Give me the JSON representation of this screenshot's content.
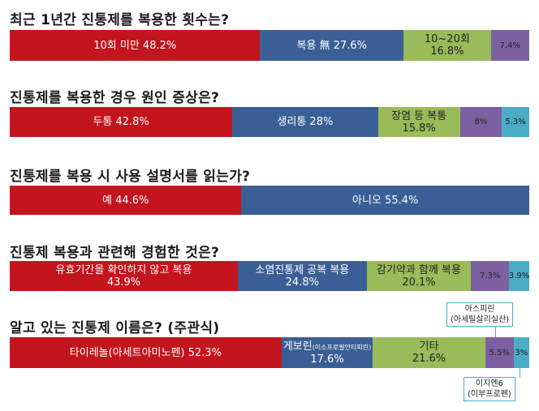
{
  "colors": {
    "red": "#c4141d",
    "blue": "#3a5f96",
    "green": "#9abb59",
    "purple": "#7d60a2",
    "teal": "#4aacc5"
  },
  "chart_data": [
    {
      "type": "bar",
      "title": "최근 1년간 진통제를 복용한 횟수는?",
      "segments": [
        {
          "label": "10회 미만",
          "value": 48.2,
          "color": "red"
        },
        {
          "label": "복용 無",
          "value": 27.6,
          "color": "blue"
        },
        {
          "label": "10~20회",
          "value": 16.8,
          "color": "green"
        },
        {
          "label": "",
          "value": 7.4,
          "color": "purple"
        }
      ]
    },
    {
      "type": "bar",
      "title": "진통제를 복용한 경우 원인 증상은?",
      "segments": [
        {
          "label": "두통",
          "value": 42.8,
          "color": "red"
        },
        {
          "label": "생리통",
          "value": 28,
          "color": "blue"
        },
        {
          "label": "장염 등 복통",
          "value": 15.8,
          "color": "green"
        },
        {
          "label": "",
          "value": 8,
          "color": "purple"
        },
        {
          "label": "",
          "value": 5.3,
          "color": "teal"
        }
      ]
    },
    {
      "type": "bar",
      "title": "진통제를 복용 시 사용 설명서를 읽는가?",
      "segments": [
        {
          "label": "예",
          "value": 44.6,
          "color": "red"
        },
        {
          "label": "아니오",
          "value": 55.4,
          "color": "blue"
        }
      ]
    },
    {
      "type": "bar",
      "title": "진통제 복용과 관련해 경험한 것은?",
      "segments": [
        {
          "label": "유효기간을 확인하지 않고 복용",
          "value": 43.9,
          "color": "red"
        },
        {
          "label": "소염진통제 공복 복용",
          "value": 24.8,
          "color": "blue"
        },
        {
          "label": "감기약과 함께 복용",
          "value": 20.1,
          "color": "green"
        },
        {
          "label": "",
          "value": 7.3,
          "color": "purple"
        },
        {
          "label": "",
          "value": 3.9,
          "color": "teal"
        }
      ]
    },
    {
      "type": "bar",
      "title": "알고 있는 진통제 이름은? (주관식)",
      "segments": [
        {
          "label": "타이레놀(아세트아미노펜)",
          "value": 52.3,
          "color": "red"
        },
        {
          "label": "게보린",
          "sublabel": "(이소프로필안티피린)",
          "value": 17.6,
          "color": "blue"
        },
        {
          "label": "기타",
          "value": 21.6,
          "color": "green"
        },
        {
          "label": "",
          "value": 5.5,
          "color": "purple"
        },
        {
          "label": "",
          "value": 3,
          "color": "teal"
        }
      ],
      "callouts": [
        {
          "line1": "아스피린",
          "line2": "(아세틸살리실산)"
        },
        {
          "line1": "이지엔6",
          "line2": "(이부프로펜)"
        }
      ]
    }
  ]
}
